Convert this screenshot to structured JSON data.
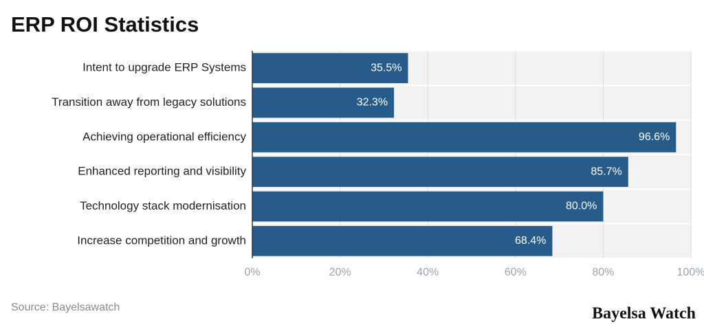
{
  "chart_data": {
    "type": "bar",
    "orientation": "horizontal",
    "title": "ERP ROI Statistics",
    "categories": [
      "Intent to upgrade ERP Systems",
      "Transition away from legacy solutions",
      "Achieving operational efficiency",
      "Enhanced reporting and visibility",
      "Technology stack modernisation",
      "Increase competition and growth"
    ],
    "values": [
      35.5,
      32.3,
      96.6,
      85.7,
      80.0,
      68.4
    ],
    "value_labels": [
      "35.5%",
      "32.3%",
      "96.6%",
      "85.7%",
      "80.0%",
      "68.4%"
    ],
    "color": "#275b8a",
    "xlim": [
      0,
      100
    ],
    "xticks": [
      {
        "value": 0,
        "label": "0%"
      },
      {
        "value": 20,
        "label": "20%"
      },
      {
        "value": 40,
        "label": "40%"
      },
      {
        "value": 60,
        "label": "60%"
      },
      {
        "value": 80,
        "label": "80%"
      },
      {
        "value": 100,
        "label": "100%"
      }
    ],
    "grid": true,
    "source": "Source: Bayelsawatch",
    "brand": "Bayelsa Watch"
  }
}
